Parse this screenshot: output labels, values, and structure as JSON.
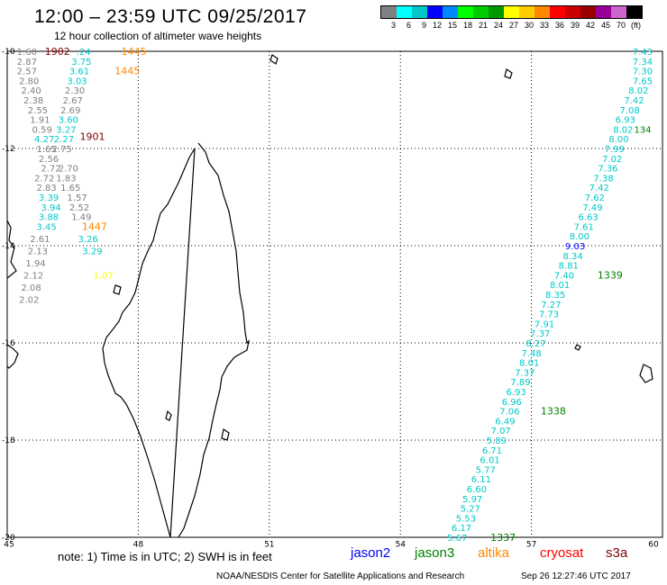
{
  "title": "12:00 – 23:59 UTC 09/25/2017",
  "subtitle": "12 hour collection of altimeter wave heights",
  "scale": {
    "colors": [
      "#808080",
      "#00ffff",
      "#00c8c8",
      "#0000ff",
      "#0088ff",
      "#00ff00",
      "#00cc00",
      "#009900",
      "#ffff00",
      "#ffcc00",
      "#ff8800",
      "#ff0000",
      "#cc0000",
      "#990000",
      "#990099",
      "#cc66cc",
      "#000000"
    ],
    "labels": [
      "3",
      "6",
      "9",
      "12",
      "15",
      "18",
      "21",
      "24",
      "27",
      "30",
      "33",
      "36",
      "39",
      "42",
      "45",
      "70",
      "(ft)"
    ]
  },
  "axes": {
    "lon_labels": [
      "45",
      "48",
      "51",
      "54",
      "57",
      "60"
    ],
    "lat_labels": [
      "-10",
      "-12",
      "-14",
      "-16",
      "-18",
      "-20"
    ]
  },
  "points": [
    {
      "t": "1.60",
      "lon": 45.45,
      "lat": -10.0,
      "c": "#808080"
    },
    {
      "t": "1902",
      "lon": 46.15,
      "lat": -10.0,
      "c": "#800000"
    },
    {
      "t": ".24",
      "lon": 46.75,
      "lat": -10.0,
      "c": "#00c8c8"
    },
    {
      "t": "1445",
      "lon": 47.9,
      "lat": -10.0,
      "c": "#ff8800"
    },
    {
      "t": "2.87",
      "lon": 45.45,
      "lat": -10.2,
      "c": "#808080"
    },
    {
      "t": "3.75",
      "lon": 46.7,
      "lat": -10.2,
      "c": "#00c8c8"
    },
    {
      "t": "2.57",
      "lon": 45.45,
      "lat": -10.4,
      "c": "#808080"
    },
    {
      "t": "3.61",
      "lon": 46.65,
      "lat": -10.4,
      "c": "#00c8c8"
    },
    {
      "t": "1445",
      "lon": 47.75,
      "lat": -10.4,
      "c": "#ff8800"
    },
    {
      "t": "2.80",
      "lon": 45.5,
      "lat": -10.6,
      "c": "#808080"
    },
    {
      "t": "3.03",
      "lon": 46.6,
      "lat": -10.6,
      "c": "#00c8c8"
    },
    {
      "t": "2.40",
      "lon": 45.55,
      "lat": -10.8,
      "c": "#808080"
    },
    {
      "t": "2.30",
      "lon": 46.55,
      "lat": -10.8,
      "c": "#808080"
    },
    {
      "t": "2.38",
      "lon": 45.6,
      "lat": -11.0,
      "c": "#808080"
    },
    {
      "t": "2.67",
      "lon": 46.5,
      "lat": -11.0,
      "c": "#808080"
    },
    {
      "t": "2.55",
      "lon": 45.7,
      "lat": -11.2,
      "c": "#808080"
    },
    {
      "t": "2.69",
      "lon": 46.45,
      "lat": -11.2,
      "c": "#808080"
    },
    {
      "t": "1.91",
      "lon": 45.75,
      "lat": -11.4,
      "c": "#808080"
    },
    {
      "t": "3.60",
      "lon": 46.4,
      "lat": -11.4,
      "c": "#00c8c8"
    },
    {
      "t": "0.59",
      "lon": 45.8,
      "lat": -11.6,
      "c": "#808080"
    },
    {
      "t": "3.27",
      "lon": 46.35,
      "lat": -11.6,
      "c": "#00c8c8"
    },
    {
      "t": "1901",
      "lon": 46.95,
      "lat": -11.75,
      "c": "#800000"
    },
    {
      "t": "4.27",
      "lon": 45.85,
      "lat": -11.8,
      "c": "#00c8c8"
    },
    {
      "t": "2.27",
      "lon": 46.3,
      "lat": -11.8,
      "c": "#00c8c8"
    },
    {
      "t": "1.65",
      "lon": 45.9,
      "lat": -12.0,
      "c": "#808080"
    },
    {
      "t": "2.75",
      "lon": 46.25,
      "lat": -12.0,
      "c": "#808080"
    },
    {
      "t": "2.56",
      "lon": 45.95,
      "lat": -12.2,
      "c": "#808080"
    },
    {
      "t": "2.72",
      "lon": 46.0,
      "lat": -12.4,
      "c": "#808080"
    },
    {
      "t": "2.70",
      "lon": 46.4,
      "lat": -12.4,
      "c": "#808080"
    },
    {
      "t": "2.72",
      "lon": 45.85,
      "lat": -12.6,
      "c": "#808080"
    },
    {
      "t": "1.83",
      "lon": 46.35,
      "lat": -12.6,
      "c": "#808080"
    },
    {
      "t": "2.83",
      "lon": 45.9,
      "lat": -12.8,
      "c": "#808080"
    },
    {
      "t": "1.65",
      "lon": 46.45,
      "lat": -12.8,
      "c": "#808080"
    },
    {
      "t": "3.39",
      "lon": 45.95,
      "lat": -13.0,
      "c": "#00c8c8"
    },
    {
      "t": "1.57",
      "lon": 46.6,
      "lat": -13.0,
      "c": "#808080"
    },
    {
      "t": "3.94",
      "lon": 46.0,
      "lat": -13.2,
      "c": "#00c8c8"
    },
    {
      "t": "2.52",
      "lon": 46.65,
      "lat": -13.2,
      "c": "#808080"
    },
    {
      "t": "3.88",
      "lon": 45.95,
      "lat": -13.4,
      "c": "#00c8c8"
    },
    {
      "t": "1.49",
      "lon": 46.7,
      "lat": -13.4,
      "c": "#808080"
    },
    {
      "t": "3.45",
      "lon": 45.9,
      "lat": -13.6,
      "c": "#00c8c8"
    },
    {
      "t": "1447",
      "lon": 47.0,
      "lat": -13.6,
      "c": "#ff8800"
    },
    {
      "t": "2.61",
      "lon": 45.75,
      "lat": -13.85,
      "c": "#808080"
    },
    {
      "t": "3.26",
      "lon": 46.85,
      "lat": -13.85,
      "c": "#00c8c8"
    },
    {
      "t": "2.13",
      "lon": 45.7,
      "lat": -14.1,
      "c": "#808080"
    },
    {
      "t": "3.29",
      "lon": 46.95,
      "lat": -14.1,
      "c": "#00c8c8"
    },
    {
      "t": "1.94",
      "lon": 45.65,
      "lat": -14.35,
      "c": "#808080"
    },
    {
      "t": "2.12",
      "lon": 45.6,
      "lat": -14.6,
      "c": "#808080"
    },
    {
      "t": "1.07",
      "lon": 47.2,
      "lat": -14.6,
      "c": "#ffff00"
    },
    {
      "t": "2.08",
      "lon": 45.55,
      "lat": -14.85,
      "c": "#808080"
    },
    {
      "t": "2.02",
      "lon": 45.5,
      "lat": -15.1,
      "c": "#808080"
    },
    {
      "t": "7.43",
      "lon": 59.8,
      "lat": -10.0,
      "c": "#00c8c8"
    },
    {
      "t": "7.34",
      "lon": 59.7,
      "lat": -10.2,
      "c": "#00c8c8"
    },
    {
      "t": "7.30",
      "lon": 59.6,
      "lat": -10.4,
      "c": "#00c8c8"
    },
    {
      "t": "7.65",
      "lon": 59.55,
      "lat": -10.6,
      "c": "#00c8c8"
    },
    {
      "t": "8.02",
      "lon": 59.45,
      "lat": -10.8,
      "c": "#00c8c8"
    },
    {
      "t": "7.42",
      "lon": 59.35,
      "lat": -11.0,
      "c": "#00c8c8"
    },
    {
      "t": "7.08",
      "lon": 59.25,
      "lat": -11.2,
      "c": "#00c8c8"
    },
    {
      "t": "6.93",
      "lon": 59.15,
      "lat": -11.4,
      "c": "#00c8c8"
    },
    {
      "t": "8.02",
      "lon": 59.1,
      "lat": -11.6,
      "c": "#00c8c8"
    },
    {
      "t": "134",
      "lon": 60.0,
      "lat": -11.6,
      "c": "#008000"
    },
    {
      "t": "8.00",
      "lon": 59.0,
      "lat": -11.8,
      "c": "#00c8c8"
    },
    {
      "t": "7.99",
      "lon": 58.9,
      "lat": -12.0,
      "c": "#00c8c8"
    },
    {
      "t": "7.02",
      "lon": 58.85,
      "lat": -12.2,
      "c": "#00c8c8"
    },
    {
      "t": "7.36",
      "lon": 58.75,
      "lat": -12.4,
      "c": "#00c8c8"
    },
    {
      "t": "7.38",
      "lon": 58.65,
      "lat": -12.6,
      "c": "#00c8c8"
    },
    {
      "t": "7.42",
      "lon": 58.55,
      "lat": -12.8,
      "c": "#00c8c8"
    },
    {
      "t": "7.62",
      "lon": 58.45,
      "lat": -13.0,
      "c": "#00c8c8"
    },
    {
      "t": "7.49",
      "lon": 58.4,
      "lat": -13.2,
      "c": "#00c8c8"
    },
    {
      "t": "6.63",
      "lon": 58.3,
      "lat": -13.4,
      "c": "#00c8c8"
    },
    {
      "t": "7.61",
      "lon": 58.2,
      "lat": -13.6,
      "c": "#00c8c8"
    },
    {
      "t": "8.00",
      "lon": 58.1,
      "lat": -13.8,
      "c": "#00c8c8"
    },
    {
      "t": "9.03",
      "lon": 58.0,
      "lat": -14.0,
      "c": "#0000ff"
    },
    {
      "t": "8.34",
      "lon": 57.95,
      "lat": -14.2,
      "c": "#00c8c8"
    },
    {
      "t": "8.81",
      "lon": 57.85,
      "lat": -14.4,
      "c": "#00c8c8"
    },
    {
      "t": "7.40",
      "lon": 57.75,
      "lat": -14.6,
      "c": "#00c8c8"
    },
    {
      "t": "1339",
      "lon": 58.8,
      "lat": -14.6,
      "c": "#008000"
    },
    {
      "t": "8.01",
      "lon": 57.65,
      "lat": -14.8,
      "c": "#00c8c8"
    },
    {
      "t": "8.35",
      "lon": 57.55,
      "lat": -15.0,
      "c": "#00c8c8"
    },
    {
      "t": "7.27",
      "lon": 57.45,
      "lat": -15.2,
      "c": "#00c8c8"
    },
    {
      "t": "7.73",
      "lon": 57.4,
      "lat": -15.4,
      "c": "#00c8c8"
    },
    {
      "t": "7.91",
      "lon": 57.3,
      "lat": -15.6,
      "c": "#00c8c8"
    },
    {
      "t": "7.37",
      "lon": 57.2,
      "lat": -15.8,
      "c": "#00c8c8"
    },
    {
      "t": "8.27",
      "lon": 57.1,
      "lat": -16.0,
      "c": "#00c8c8"
    },
    {
      "t": "7.48",
      "lon": 57.0,
      "lat": -16.2,
      "c": "#00c8c8"
    },
    {
      "t": "8.01",
      "lon": 56.95,
      "lat": -16.4,
      "c": "#00c8c8"
    },
    {
      "t": "7.37",
      "lon": 56.85,
      "lat": -16.6,
      "c": "#00c8c8"
    },
    {
      "t": "7.89",
      "lon": 56.75,
      "lat": -16.8,
      "c": "#00c8c8"
    },
    {
      "t": "6.93",
      "lon": 56.65,
      "lat": -17.0,
      "c": "#00c8c8"
    },
    {
      "t": "6.96",
      "lon": 56.55,
      "lat": -17.2,
      "c": "#00c8c8"
    },
    {
      "t": "7.06",
      "lon": 56.5,
      "lat": -17.4,
      "c": "#00c8c8"
    },
    {
      "t": "1338",
      "lon": 57.5,
      "lat": -17.4,
      "c": "#008000"
    },
    {
      "t": "6.49",
      "lon": 56.4,
      "lat": -17.6,
      "c": "#00c8c8"
    },
    {
      "t": "7.07",
      "lon": 56.3,
      "lat": -17.8,
      "c": "#00c8c8"
    },
    {
      "t": "5.89",
      "lon": 56.2,
      "lat": -18.0,
      "c": "#00c8c8"
    },
    {
      "t": "6.71",
      "lon": 56.1,
      "lat": -18.2,
      "c": "#00c8c8"
    },
    {
      "t": "6.01",
      "lon": 56.05,
      "lat": -18.4,
      "c": "#00c8c8"
    },
    {
      "t": "5.77",
      "lon": 55.95,
      "lat": -18.6,
      "c": "#00c8c8"
    },
    {
      "t": "6.11",
      "lon": 55.85,
      "lat": -18.8,
      "c": "#00c8c8"
    },
    {
      "t": "6.60",
      "lon": 55.75,
      "lat": -19.0,
      "c": "#00c8c8"
    },
    {
      "t": "5.97",
      "lon": 55.65,
      "lat": -19.2,
      "c": "#00c8c8"
    },
    {
      "t": "5.27",
      "lon": 55.6,
      "lat": -19.4,
      "c": "#00c8c8"
    },
    {
      "t": "5.53",
      "lon": 55.5,
      "lat": -19.6,
      "c": "#00c8c8"
    },
    {
      "t": "6.17",
      "lon": 55.4,
      "lat": -19.8,
      "c": "#00c8c8"
    },
    {
      "t": "5.67",
      "lon": 55.3,
      "lat": -20.0,
      "c": "#00c8c8"
    },
    {
      "t": "1337",
      "lon": 56.35,
      "lat": -20.0,
      "c": "#008000"
    }
  ],
  "note": "note:  1) Time is in UTC;  2) SWH is in feet",
  "legend": [
    {
      "name": "jason2",
      "color": "#0000ff"
    },
    {
      "name": "jason3",
      "color": "#008000"
    },
    {
      "name": "altika",
      "color": "#ff8800"
    },
    {
      "name": "cryosat",
      "color": "#ff0000"
    },
    {
      "name": "s3a",
      "color": "#800000"
    }
  ],
  "footer": "NOAA/NESDIS Center for Satellite Applications and Research",
  "footer_time": "Sep 26 12:27:46 UTC 2017"
}
